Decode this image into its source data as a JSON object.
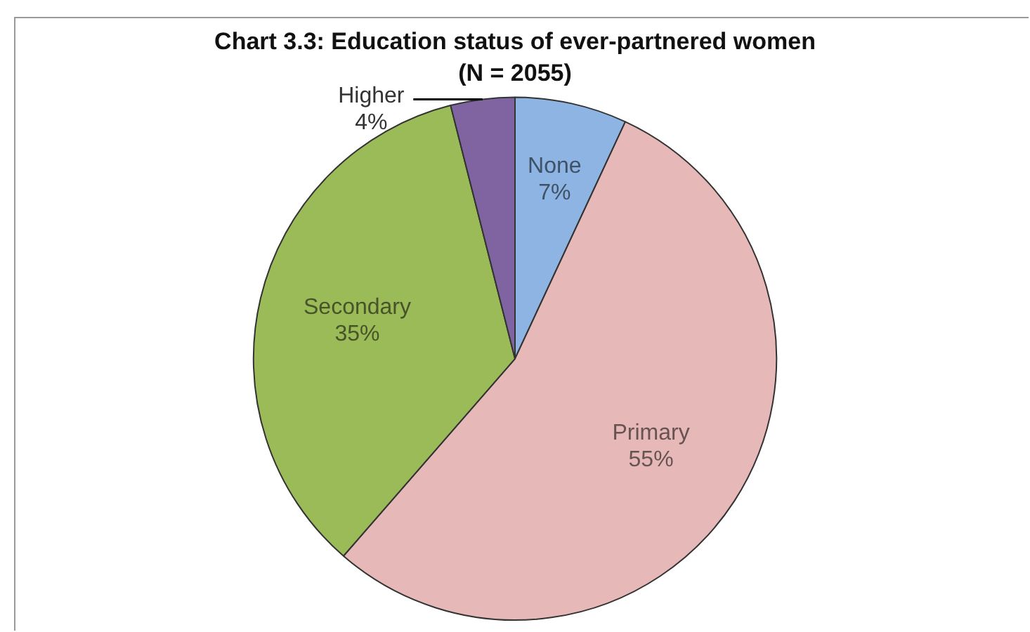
{
  "chart_data": {
    "type": "pie",
    "title": "Chart 3.3: Education status of ever-partnered women",
    "subtitle": "(N = 2055)",
    "categories": [
      "None",
      "Primary",
      "Secondary",
      "Higher"
    ],
    "values": [
      7,
      55,
      35,
      4
    ],
    "colors": [
      "#8db4e2",
      "#e6b9b8",
      "#9bbb59",
      "#8064a2"
    ],
    "value_labels": [
      "7%",
      "55%",
      "35%",
      "4%"
    ],
    "legend": false
  }
}
